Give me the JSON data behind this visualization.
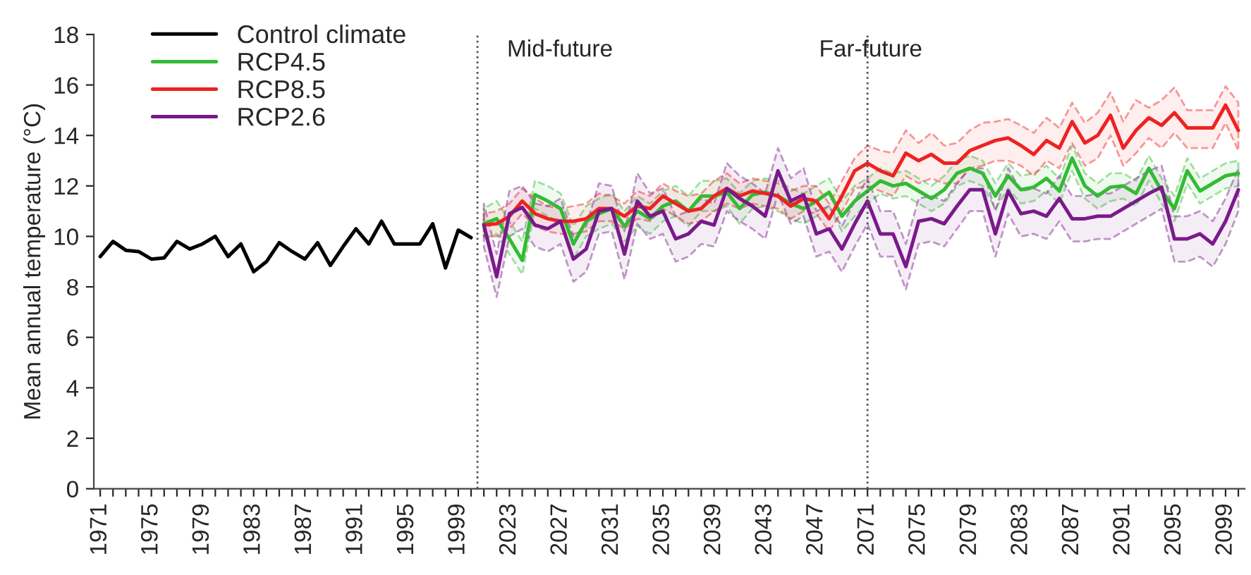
{
  "chart_data": {
    "type": "line",
    "ylabel": "Mean annual temperature (°C)",
    "categories": [
      "1971",
      null,
      null,
      null,
      "1975",
      null,
      null,
      null,
      "1979",
      null,
      null,
      null,
      "1983",
      null,
      null,
      null,
      "1987",
      null,
      null,
      null,
      "1991",
      null,
      null,
      null,
      "1995",
      null,
      null,
      null,
      "1999",
      null,
      null,
      null,
      "2023",
      null,
      null,
      null,
      "2027",
      null,
      null,
      null,
      "2031",
      null,
      null,
      null,
      "2035",
      null,
      null,
      null,
      "2039",
      null,
      null,
      null,
      "2043",
      null,
      null,
      null,
      "2047",
      null,
      null,
      null,
      "2071",
      null,
      null,
      null,
      "2075",
      null,
      null,
      null,
      "2079",
      null,
      null,
      null,
      "2083",
      null,
      null,
      null,
      "2087",
      null,
      null,
      null,
      "2091",
      null,
      null,
      null,
      "2095",
      null,
      null,
      null,
      "2099",
      null
    ],
    "ylim": [
      0,
      18
    ],
    "yticks": [
      0,
      2,
      4,
      6,
      8,
      10,
      12,
      14,
      16,
      18
    ],
    "legend": "top left",
    "grid": false,
    "annotations": [
      "Mid-future",
      "Far-future"
    ],
    "ref_lines": [
      {
        "axis": "x",
        "value": "2071",
        "line_style": "dotted",
        "color": "#555555"
      }
    ],
    "series": [
      {
        "name": "Control climate",
        "color": "#000000",
        "values": [
          9.2,
          9.8,
          9.45,
          9.4,
          9.1,
          9.15,
          9.8,
          9.5,
          9.7,
          10.0,
          9.2,
          9.7,
          8.6,
          9.0,
          9.75,
          9.4,
          9.1,
          9.75,
          8.85,
          9.6,
          10.3,
          9.7,
          10.6,
          9.7,
          9.7,
          9.7,
          10.5,
          8.75,
          10.25,
          9.95,
          null,
          null,
          null,
          null,
          null,
          null,
          null,
          null,
          null,
          null,
          null,
          null,
          null,
          null,
          null,
          null,
          null,
          null,
          null,
          null,
          null,
          null,
          null,
          null,
          null,
          null,
          null,
          null,
          null,
          null,
          null,
          null,
          null,
          null,
          null,
          null,
          null,
          null,
          null,
          null,
          null,
          null,
          null,
          null,
          null,
          null,
          null,
          null,
          null,
          null,
          null,
          null,
          null,
          null,
          null,
          null,
          null,
          null,
          null,
          null
        ]
      },
      {
        "name": "RCP4.5",
        "color": "#33bb33",
        "values": [
          null,
          null,
          null,
          null,
          null,
          null,
          null,
          null,
          null,
          null,
          null,
          null,
          null,
          null,
          null,
          null,
          null,
          null,
          null,
          null,
          null,
          null,
          null,
          null,
          null,
          null,
          null,
          null,
          null,
          null,
          10.5,
          10.7,
          9.9,
          9.05,
          11.65,
          11.4,
          11.1,
          9.7,
          10.6,
          10.9,
          11.1,
          10.4,
          11.0,
          10.7,
          11.2,
          11.4,
          11.0,
          11.6,
          11.6,
          11.75,
          11.1,
          11.65,
          11.75,
          11.6,
          11.3,
          11.1,
          11.4,
          11.75,
          10.8,
          11.4,
          11.8,
          12.2,
          12.0,
          12.1,
          11.8,
          11.5,
          11.85,
          12.5,
          12.7,
          12.5,
          11.6,
          12.4,
          11.85,
          11.95,
          12.3,
          11.8,
          13.1,
          12.0,
          11.6,
          11.95,
          12.0,
          11.7,
          12.7,
          11.8,
          11.1,
          12.6,
          11.8,
          12.1,
          12.4,
          12.5
        ],
        "upper": [
          null,
          null,
          null,
          null,
          null,
          null,
          null,
          null,
          null,
          null,
          null,
          null,
          null,
          null,
          null,
          null,
          null,
          null,
          null,
          null,
          null,
          null,
          null,
          null,
          null,
          null,
          null,
          null,
          null,
          null,
          11.1,
          11.4,
          10.6,
          9.8,
          12.2,
          12.0,
          11.7,
          10.4,
          11.2,
          11.5,
          11.7,
          11.0,
          11.6,
          11.3,
          11.8,
          12.0,
          11.6,
          12.2,
          12.2,
          12.3,
          11.7,
          12.2,
          12.3,
          12.2,
          11.9,
          11.7,
          12.0,
          12.3,
          11.4,
          12.0,
          12.3,
          12.7,
          12.5,
          12.6,
          12.3,
          12.0,
          12.4,
          13.0,
          13.2,
          13.0,
          12.1,
          12.9,
          12.4,
          12.5,
          12.8,
          12.3,
          13.6,
          12.5,
          12.1,
          12.5,
          12.5,
          12.2,
          13.2,
          12.3,
          11.6,
          13.1,
          12.3,
          12.6,
          12.9,
          13.0
        ],
        "lower": [
          null,
          null,
          null,
          null,
          null,
          null,
          null,
          null,
          null,
          null,
          null,
          null,
          null,
          null,
          null,
          null,
          null,
          null,
          null,
          null,
          null,
          null,
          null,
          null,
          null,
          null,
          null,
          null,
          null,
          null,
          9.9,
          10.1,
          9.3,
          8.5,
          11.1,
          10.8,
          10.5,
          9.1,
          10.0,
          10.3,
          10.5,
          9.8,
          10.4,
          10.1,
          10.6,
          10.8,
          10.4,
          11.0,
          11.0,
          11.2,
          10.5,
          11.1,
          11.2,
          11.0,
          10.7,
          10.5,
          10.8,
          11.2,
          10.2,
          10.8,
          11.3,
          11.7,
          11.5,
          11.6,
          11.3,
          11.0,
          11.3,
          12.0,
          12.2,
          12.0,
          11.1,
          11.9,
          11.3,
          11.4,
          11.8,
          11.3,
          12.6,
          11.5,
          11.1,
          11.4,
          11.5,
          11.2,
          12.2,
          11.3,
          10.6,
          12.1,
          11.3,
          11.6,
          11.9,
          12.0
        ]
      },
      {
        "name": "RCP8.5",
        "color": "#ee2222",
        "values": [
          null,
          null,
          null,
          null,
          null,
          null,
          null,
          null,
          null,
          null,
          null,
          null,
          null,
          null,
          null,
          null,
          null,
          null,
          null,
          null,
          null,
          null,
          null,
          null,
          null,
          null,
          null,
          null,
          null,
          null,
          10.45,
          10.5,
          10.8,
          11.4,
          10.9,
          10.7,
          10.6,
          10.6,
          10.7,
          11.1,
          11.1,
          10.8,
          11.2,
          11.1,
          11.6,
          11.3,
          11.0,
          11.1,
          11.6,
          11.9,
          11.6,
          11.8,
          11.7,
          11.6,
          11.2,
          11.5,
          11.4,
          10.7,
          11.6,
          12.6,
          12.9,
          12.6,
          12.4,
          13.3,
          13.0,
          13.25,
          12.9,
          12.9,
          13.4,
          13.6,
          13.8,
          13.9,
          13.6,
          13.25,
          13.8,
          13.5,
          14.55,
          13.7,
          14.0,
          14.8,
          13.5,
          14.2,
          14.7,
          14.4,
          14.9,
          14.3,
          14.3,
          14.3,
          15.2,
          14.2
        ],
        "upper": [
          null,
          null,
          null,
          null,
          null,
          null,
          null,
          null,
          null,
          null,
          null,
          null,
          null,
          null,
          null,
          null,
          null,
          null,
          null,
          null,
          null,
          null,
          null,
          null,
          null,
          null,
          null,
          null,
          null,
          null,
          10.9,
          11.0,
          11.3,
          11.9,
          11.5,
          11.2,
          11.1,
          11.2,
          11.3,
          11.7,
          11.6,
          11.3,
          11.8,
          11.6,
          12.1,
          11.8,
          11.6,
          11.7,
          12.2,
          12.5,
          12.1,
          12.3,
          12.2,
          12.1,
          11.8,
          12.0,
          12.0,
          11.3,
          12.2,
          13.1,
          13.6,
          13.4,
          13.3,
          14.2,
          13.7,
          14.1,
          13.6,
          13.7,
          14.2,
          14.5,
          14.55,
          14.65,
          14.4,
          14.1,
          14.7,
          14.3,
          15.3,
          14.5,
          14.9,
          15.7,
          14.55,
          15.4,
          15.1,
          15.4,
          15.9,
          15.0,
          15.0,
          15.0,
          15.95,
          15.3
        ],
        "lower": [
          null,
          null,
          null,
          null,
          null,
          null,
          null,
          null,
          null,
          null,
          null,
          null,
          null,
          null,
          null,
          null,
          null,
          null,
          null,
          null,
          null,
          null,
          null,
          null,
          null,
          null,
          null,
          null,
          null,
          null,
          10.0,
          10.0,
          10.3,
          10.9,
          10.4,
          10.2,
          10.1,
          10.1,
          10.2,
          10.6,
          10.6,
          10.3,
          10.7,
          10.6,
          11.1,
          10.8,
          10.5,
          10.6,
          11.0,
          11.3,
          11.1,
          11.3,
          11.2,
          11.1,
          10.7,
          11.0,
          10.9,
          10.2,
          11.0,
          11.9,
          12.0,
          11.8,
          11.6,
          12.4,
          12.1,
          12.3,
          12.1,
          12.1,
          12.7,
          12.8,
          13.0,
          13.0,
          12.8,
          12.4,
          13.0,
          12.7,
          13.7,
          12.8,
          13.1,
          14.0,
          12.8,
          13.3,
          13.9,
          13.5,
          14.1,
          13.5,
          13.5,
          13.5,
          14.5,
          13.4
        ]
      },
      {
        "name": "RCP2.6",
        "color": "#7a1a8a",
        "values": [
          null,
          null,
          null,
          null,
          null,
          null,
          null,
          null,
          null,
          null,
          null,
          null,
          null,
          null,
          null,
          null,
          null,
          null,
          null,
          null,
          null,
          null,
          null,
          null,
          null,
          null,
          null,
          null,
          null,
          null,
          10.45,
          8.4,
          10.9,
          11.15,
          10.45,
          10.3,
          10.6,
          9.1,
          9.5,
          11.0,
          11.1,
          9.3,
          11.4,
          10.8,
          11.0,
          9.9,
          10.1,
          10.6,
          10.45,
          11.9,
          11.5,
          11.2,
          10.8,
          12.6,
          11.4,
          11.65,
          10.1,
          10.3,
          9.5,
          10.5,
          11.4,
          10.1,
          10.1,
          8.8,
          10.6,
          10.7,
          10.5,
          11.2,
          11.85,
          11.85,
          10.1,
          11.8,
          10.9,
          11.0,
          10.8,
          11.5,
          10.7,
          10.7,
          10.8,
          10.8,
          11.1,
          11.4,
          11.7,
          11.95,
          9.9,
          9.9,
          10.1,
          9.7,
          10.6,
          11.85
        ],
        "upper": [
          null,
          null,
          null,
          null,
          null,
          null,
          null,
          null,
          null,
          null,
          null,
          null,
          null,
          null,
          null,
          null,
          null,
          null,
          null,
          null,
          null,
          null,
          null,
          null,
          null,
          null,
          null,
          null,
          null,
          null,
          11.3,
          9.3,
          11.8,
          12.0,
          11.3,
          11.2,
          11.5,
          10.0,
          10.4,
          12.1,
          12.0,
          10.2,
          12.5,
          11.7,
          11.9,
          10.8,
          11.0,
          11.5,
          11.3,
          12.9,
          12.4,
          12.1,
          11.7,
          13.5,
          12.3,
          12.7,
          11.0,
          11.2,
          10.4,
          11.4,
          12.3,
          11.0,
          11.0,
          9.7,
          11.5,
          11.6,
          11.4,
          12.1,
          12.7,
          12.7,
          11.0,
          12.7,
          11.8,
          11.9,
          11.7,
          12.4,
          11.6,
          11.6,
          11.7,
          11.7,
          12.0,
          12.3,
          12.6,
          12.8,
          10.8,
          10.8,
          11.0,
          10.6,
          11.5,
          12.7
        ],
        "lower": [
          null,
          null,
          null,
          null,
          null,
          null,
          null,
          null,
          null,
          null,
          null,
          null,
          null,
          null,
          null,
          null,
          null,
          null,
          null,
          null,
          null,
          null,
          null,
          null,
          null,
          null,
          null,
          null,
          null,
          null,
          9.6,
          7.6,
          10.0,
          10.3,
          9.6,
          9.4,
          9.7,
          8.2,
          8.6,
          10.1,
          10.2,
          8.3,
          10.5,
          9.9,
          10.1,
          9.0,
          9.2,
          9.7,
          9.6,
          11.0,
          10.6,
          10.3,
          9.9,
          11.7,
          10.5,
          10.8,
          9.2,
          9.4,
          8.6,
          9.6,
          10.5,
          9.2,
          9.2,
          7.9,
          9.7,
          9.8,
          9.6,
          10.3,
          11.0,
          11.0,
          9.2,
          10.9,
          10.0,
          10.1,
          9.9,
          10.6,
          9.8,
          9.8,
          9.9,
          9.9,
          10.2,
          10.5,
          10.8,
          11.1,
          9.0,
          9.0,
          9.2,
          8.8,
          9.7,
          11.0
        ]
      }
    ]
  }
}
